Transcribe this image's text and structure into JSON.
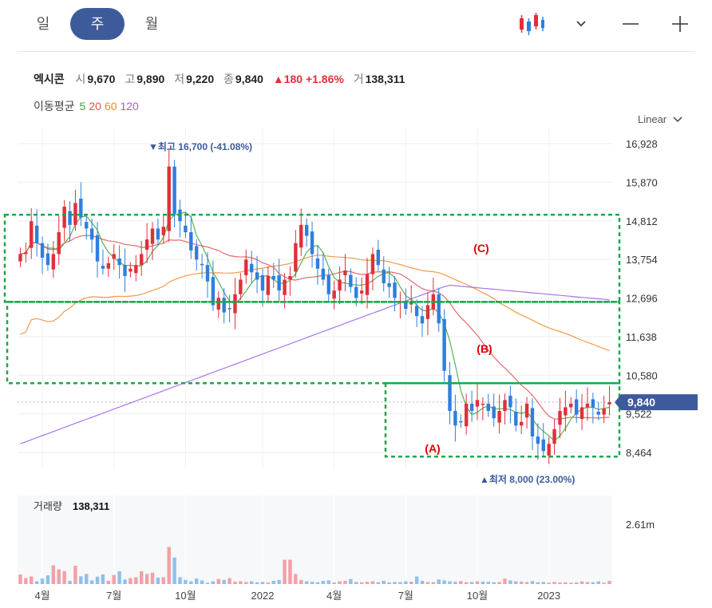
{
  "tabs": [
    {
      "label": "일",
      "active": false
    },
    {
      "label": "주",
      "active": true
    },
    {
      "label": "월",
      "active": false
    }
  ],
  "toolbar": {
    "chart_type_icon": "candlestick-icon",
    "dropdown_icon": "chevron-down-icon",
    "zoom_out_icon": "minus-icon",
    "zoom_in_icon": "plus-icon"
  },
  "quote": {
    "name": "엑시콘",
    "open_label": "시",
    "open": "9,670",
    "high_label": "고",
    "high": "9,890",
    "low_label": "저",
    "low": "9,220",
    "close_label": "종",
    "close": "9,840",
    "change": "▲180 +1.86%",
    "volume_label": "거",
    "volume": "138,311"
  },
  "moving_average": {
    "label": "이동평균",
    "periods": [
      "5",
      "20",
      "60",
      "120"
    ],
    "colors": [
      "#3aa63a",
      "#e05050",
      "#f08a28",
      "#9b5de5"
    ]
  },
  "scale_button": "Linear",
  "colors": {
    "up": "#e0303a",
    "down": "#2e7fdc",
    "box": "#19a84a",
    "price_tag": "#3d5a9b",
    "annotation": "#e00000"
  },
  "chart_data": {
    "type": "candlestick",
    "y_ticks": [
      "16,928",
      "15,870",
      "14,812",
      "13,754",
      "12,696",
      "11,638",
      "10,580",
      "9,522",
      "8,464"
    ],
    "ylim": [
      8000,
      17300
    ],
    "x_labels": [
      "4월",
      "7월",
      "10월",
      "2022",
      "4월",
      "7월",
      "10월",
      "2023"
    ],
    "x_label_weeks": [
      4,
      17,
      30,
      44,
      57,
      70,
      83,
      96
    ],
    "current_price": "9,840",
    "current_value": 9840,
    "high_annotation": "▼최고 16,700 (-41.08%)",
    "low_annotation": "▲최저 8,000 (23.00%)",
    "zones": [
      {
        "label": "(C)",
        "y_top": 14980,
        "y_bottom": 12590
      },
      {
        "label": "(B)",
        "y_top": 12590,
        "y_bottom": 10360
      },
      {
        "label": "(A)",
        "y_top": 10360,
        "y_bottom": 8350
      }
    ],
    "volume_label": "거래량",
    "volume_value": "138,311",
    "volume_tick": "2.61m",
    "volume_max": 2610000,
    "weeks": 108,
    "closes": [
      13900,
      13950,
      14800,
      14200,
      13800,
      13600,
      13900,
      14500,
      15200,
      14700,
      15300,
      14900,
      14600,
      14300,
      13700,
      13500,
      13650,
      13900,
      13600,
      13300,
      13500,
      13600,
      13900,
      14300,
      14600,
      14300,
      14650,
      16300,
      15000,
      14800,
      14500,
      14000,
      13750,
      13600,
      13150,
      12500,
      12700,
      12300,
      12400,
      12800,
      13200,
      13750,
      13400,
      13200,
      12900,
      13300,
      13200,
      12900,
      13200,
      13300,
      14200,
      14700,
      14400,
      13900,
      13500,
      13200,
      12800,
      12900,
      13200,
      13450,
      13000,
      12700,
      12900,
      13350,
      13900,
      13600,
      13100,
      13000,
      12700,
      12600,
      12400,
      12600,
      12200,
      12000,
      12500,
      12800,
      12000,
      10700,
      9600,
      9200,
      9300,
      9800,
      9600,
      9900,
      9800,
      9600,
      9400,
      9600,
      9900,
      9700,
      9200,
      9300,
      9800,
      8900,
      8700,
      8500,
      8700,
      9100,
      9600,
      9700,
      9800,
      9500,
      9700,
      9800,
      9700,
      9500,
      9660,
      9840
    ],
    "volumes": [
      420000,
      260000,
      330000,
      120000,
      240000,
      380000,
      820000,
      640000,
      560000,
      140000,
      800000,
      340000,
      440000,
      160000,
      320000,
      420000,
      140000,
      400000,
      560000,
      200000,
      260000,
      300000,
      560000,
      440000,
      500000,
      280000,
      300000,
      1620000,
      1160000,
      300000,
      180000,
      120000,
      240000,
      160000,
      60000,
      120000,
      220000,
      180000,
      260000,
      110000,
      120000,
      90000,
      120000,
      80000,
      90000,
      70000,
      140000,
      180000,
      1060000,
      1060000,
      440000,
      180000,
      120000,
      100000,
      80000,
      140000,
      160000,
      70000,
      120000,
      140000,
      220000,
      90000,
      80000,
      100000,
      120000,
      80000,
      140000,
      70000,
      90000,
      80000,
      120000,
      100000,
      330000,
      140000,
      90000,
      80000,
      200000,
      160000,
      120000,
      100000,
      130000,
      80000,
      90000,
      120000,
      110000,
      100000,
      80000,
      90000,
      240000,
      160000,
      120000,
      100000,
      90000,
      130000,
      80000,
      90000,
      60000,
      90000,
      70000,
      80000,
      60000,
      70000,
      120000,
      90000,
      80000,
      120000,
      60000,
      138311
    ]
  }
}
